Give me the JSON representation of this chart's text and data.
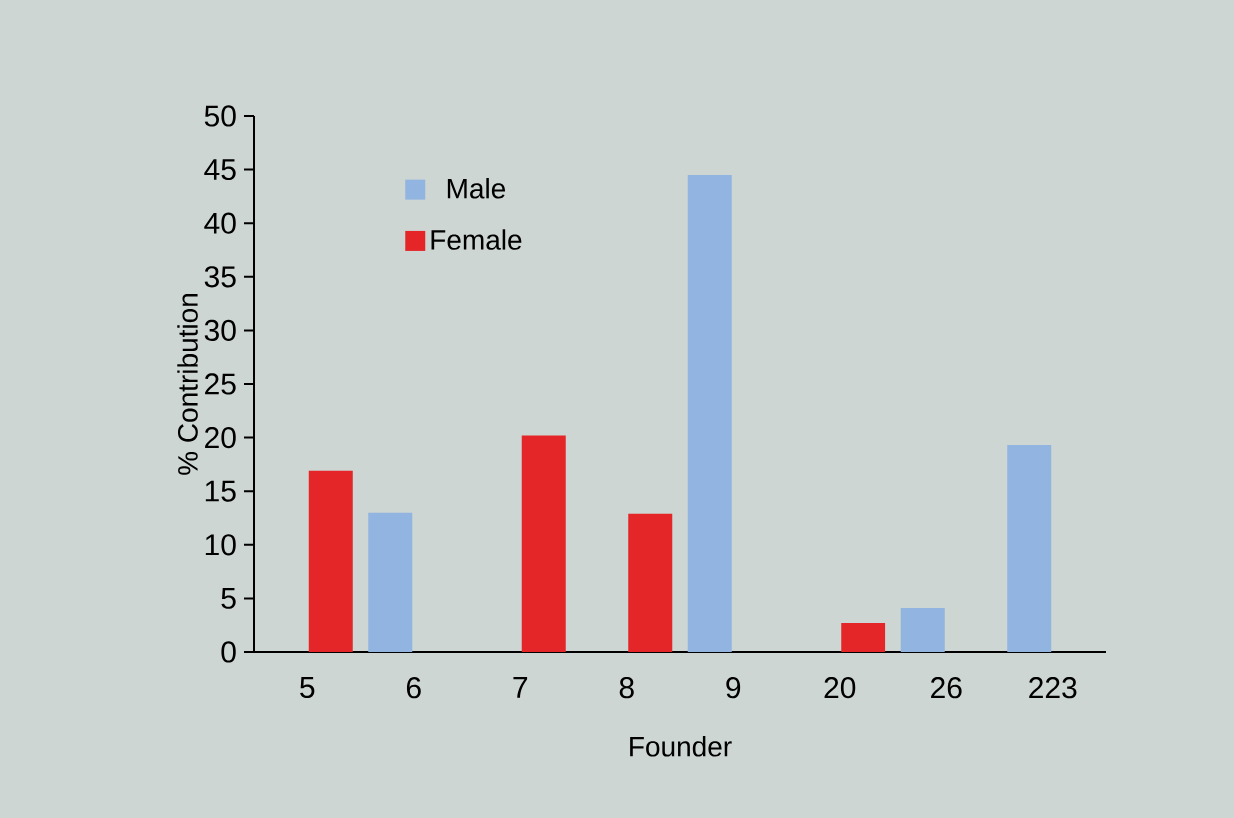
{
  "chart_data": {
    "type": "bar",
    "xlabel": "Founder",
    "ylabel": "% Contribution",
    "categories": [
      "5",
      "6",
      "7",
      "8",
      "9",
      "20",
      "26",
      "223"
    ],
    "series": [
      {
        "name": "Male",
        "color": "#92b4e0",
        "values": [
          null,
          13.0,
          null,
          null,
          44.5,
          null,
          4.1,
          19.3
        ]
      },
      {
        "name": "Female",
        "color": "#e52629",
        "values": [
          16.9,
          null,
          20.2,
          12.9,
          null,
          2.7,
          null,
          null
        ]
      }
    ],
    "ylim": [
      0,
      50
    ],
    "yticks": [
      0,
      5,
      10,
      15,
      20,
      25,
      30,
      35,
      40,
      45,
      50
    ],
    "grid": false,
    "legend": "top left"
  }
}
